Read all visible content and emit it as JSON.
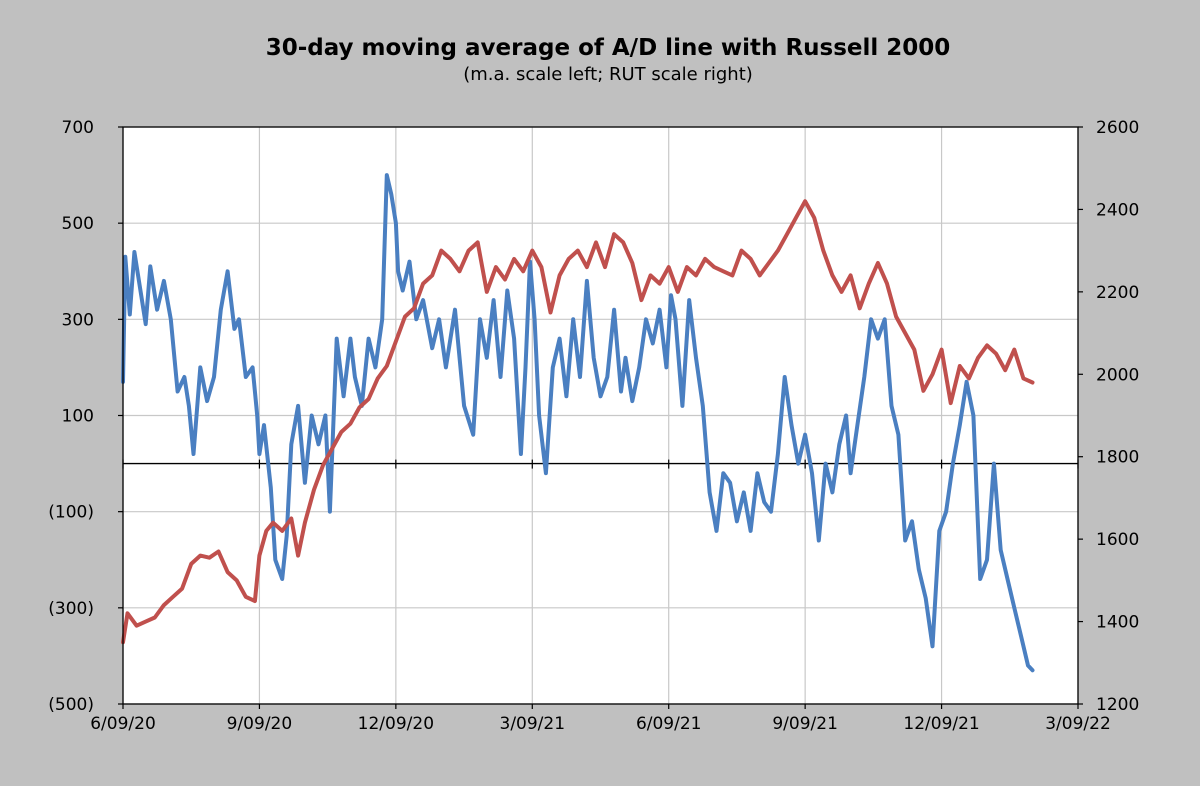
{
  "chart_data": {
    "type": "line",
    "title": "30-day moving average of A/D line with Russell 2000",
    "subtitle": "(m.a. scale left; RUT scale right)",
    "x_ticks": [
      "6/09/20",
      "9/09/20",
      "12/09/20",
      "3/09/21",
      "6/09/21",
      "9/09/21",
      "12/09/21",
      "3/09/22"
    ],
    "x_range_months": [
      0,
      21
    ],
    "y_left": {
      "range": [
        -500,
        700
      ],
      "ticks": [
        700,
        500,
        300,
        100,
        -100,
        -300,
        -500
      ],
      "tick_labels": [
        "700",
        "500",
        "300",
        "100",
        "(100)",
        "(300)",
        "(500)"
      ]
    },
    "y_right": {
      "range": [
        1200,
        2600
      ],
      "ticks": [
        2600,
        2400,
        2200,
        2000,
        1800,
        1600,
        1400,
        1200
      ],
      "tick_labels": [
        "2600",
        "2400",
        "2200",
        "2000",
        "1800",
        "1600",
        "1400",
        "1200"
      ]
    },
    "grid": true,
    "series": [
      {
        "name": "30-day moving average of A/D line",
        "axis": "left",
        "color": "#4a7fc1",
        "x": [
          0,
          0.05,
          0.15,
          0.25,
          0.4,
          0.5,
          0.6,
          0.75,
          0.9,
          1.05,
          1.2,
          1.35,
          1.45,
          1.55,
          1.7,
          1.85,
          2.0,
          2.15,
          2.3,
          2.45,
          2.55,
          2.7,
          2.85,
          2.95,
          3.0,
          3.1,
          3.25,
          3.35,
          3.5,
          3.6,
          3.7,
          3.85,
          4.0,
          4.15,
          4.3,
          4.45,
          4.55,
          4.7,
          4.85,
          5.0,
          5.1,
          5.25,
          5.4,
          5.55,
          5.7,
          5.8,
          5.9,
          6.0,
          6.05,
          6.15,
          6.3,
          6.45,
          6.6,
          6.8,
          6.95,
          7.1,
          7.3,
          7.5,
          7.7,
          7.85,
          8.0,
          8.15,
          8.3,
          8.45,
          8.6,
          8.75,
          8.85,
          8.95,
          9.05,
          9.15,
          9.3,
          9.45,
          9.6,
          9.75,
          9.9,
          10.05,
          10.2,
          10.35,
          10.5,
          10.65,
          10.8,
          10.95,
          11.05,
          11.2,
          11.35,
          11.5,
          11.65,
          11.8,
          11.95,
          12.05,
          12.15,
          12.3,
          12.45,
          12.6,
          12.75,
          12.9,
          13.05,
          13.2,
          13.35,
          13.5,
          13.65,
          13.8,
          13.95,
          14.1,
          14.25,
          14.4,
          14.55,
          14.7,
          14.85,
          15.0,
          15.15,
          15.3,
          15.45,
          15.6,
          15.75,
          15.9,
          16.0,
          16.15,
          16.3,
          16.45,
          16.6,
          16.75,
          16.9,
          17.05,
          17.2,
          17.35,
          17.5,
          17.65,
          17.8,
          17.95,
          18.1,
          18.25,
          18.4,
          18.55,
          18.7,
          18.85,
          19.0,
          19.15,
          19.3,
          19.45,
          19.6,
          19.75,
          19.9,
          20.0
        ],
        "values": [
          170,
          430,
          310,
          440,
          350,
          290,
          410,
          320,
          380,
          300,
          150,
          180,
          120,
          20,
          200,
          130,
          180,
          320,
          400,
          280,
          300,
          180,
          200,
          100,
          20,
          80,
          -50,
          -200,
          -240,
          -150,
          40,
          120,
          -40,
          100,
          40,
          100,
          -100,
          260,
          140,
          260,
          180,
          120,
          260,
          200,
          300,
          600,
          560,
          500,
          400,
          360,
          420,
          300,
          340,
          240,
          300,
          200,
          320,
          120,
          60,
          300,
          220,
          340,
          180,
          360,
          260,
          20,
          200,
          420,
          300,
          100,
          -20,
          200,
          260,
          140,
          300,
          180,
          380,
          220,
          140,
          180,
          320,
          150,
          220,
          130,
          200,
          300,
          250,
          320,
          200,
          350,
          300,
          120,
          340,
          220,
          120,
          -60,
          -140,
          -20,
          -40,
          -120,
          -60,
          -140,
          -20,
          -80,
          -100,
          20,
          180,
          80,
          0,
          60,
          -20,
          -160,
          0,
          -60,
          40,
          100,
          -20,
          80,
          180,
          300,
          260,
          300,
          120,
          60,
          -160,
          -120,
          -220,
          -280,
          -380,
          -140,
          -100,
          0,
          80,
          170,
          100,
          -240,
          -200,
          0,
          -180,
          -240,
          -300,
          -360,
          -420,
          -430
        ]
      },
      {
        "name": "Russell 2000 (RUT)",
        "axis": "right",
        "color": "#c0504d",
        "x": [
          0,
          0.1,
          0.3,
          0.5,
          0.7,
          0.9,
          1.1,
          1.3,
          1.5,
          1.7,
          1.9,
          2.1,
          2.3,
          2.5,
          2.7,
          2.9,
          3.0,
          3.15,
          3.3,
          3.5,
          3.7,
          3.85,
          4.0,
          4.2,
          4.4,
          4.6,
          4.8,
          5.0,
          5.2,
          5.4,
          5.6,
          5.8,
          6.0,
          6.2,
          6.4,
          6.6,
          6.8,
          7.0,
          7.2,
          7.4,
          7.6,
          7.8,
          8.0,
          8.2,
          8.4,
          8.6,
          8.8,
          9.0,
          9.2,
          9.4,
          9.6,
          9.8,
          10.0,
          10.2,
          10.4,
          10.6,
          10.8,
          11.0,
          11.2,
          11.4,
          11.6,
          11.8,
          12.0,
          12.2,
          12.4,
          12.6,
          12.8,
          13.0,
          13.2,
          13.4,
          13.6,
          13.8,
          14.0,
          14.2,
          14.4,
          14.6,
          14.8,
          15.0,
          15.2,
          15.4,
          15.6,
          15.8,
          16.0,
          16.2,
          16.4,
          16.6,
          16.8,
          17.0,
          17.2,
          17.4,
          17.6,
          17.8,
          18.0,
          18.2,
          18.4,
          18.6,
          18.8,
          19.0,
          19.2,
          19.4,
          19.6,
          19.8,
          20.0
        ],
        "values": [
          1350,
          1420,
          1390,
          1400,
          1410,
          1440,
          1460,
          1480,
          1540,
          1560,
          1555,
          1570,
          1520,
          1500,
          1460,
          1450,
          1560,
          1620,
          1640,
          1620,
          1650,
          1560,
          1640,
          1720,
          1780,
          1820,
          1860,
          1880,
          1920,
          1940,
          1990,
          2020,
          2080,
          2140,
          2160,
          2220,
          2240,
          2300,
          2280,
          2250,
          2300,
          2320,
          2200,
          2260,
          2230,
          2280,
          2250,
          2300,
          2260,
          2150,
          2240,
          2280,
          2300,
          2260,
          2320,
          2260,
          2340,
          2320,
          2270,
          2180,
          2240,
          2220,
          2260,
          2200,
          2260,
          2240,
          2280,
          2260,
          2250,
          2240,
          2300,
          2280,
          2240,
          2270,
          2300,
          2340,
          2380,
          2420,
          2380,
          2300,
          2240,
          2200,
          2240,
          2160,
          2220,
          2270,
          2220,
          2140,
          2100,
          2060,
          1960,
          2000,
          2060,
          1930,
          2020,
          1990,
          2040,
          2070,
          2050,
          2010,
          2060,
          1990,
          1980
        ]
      }
    ]
  }
}
